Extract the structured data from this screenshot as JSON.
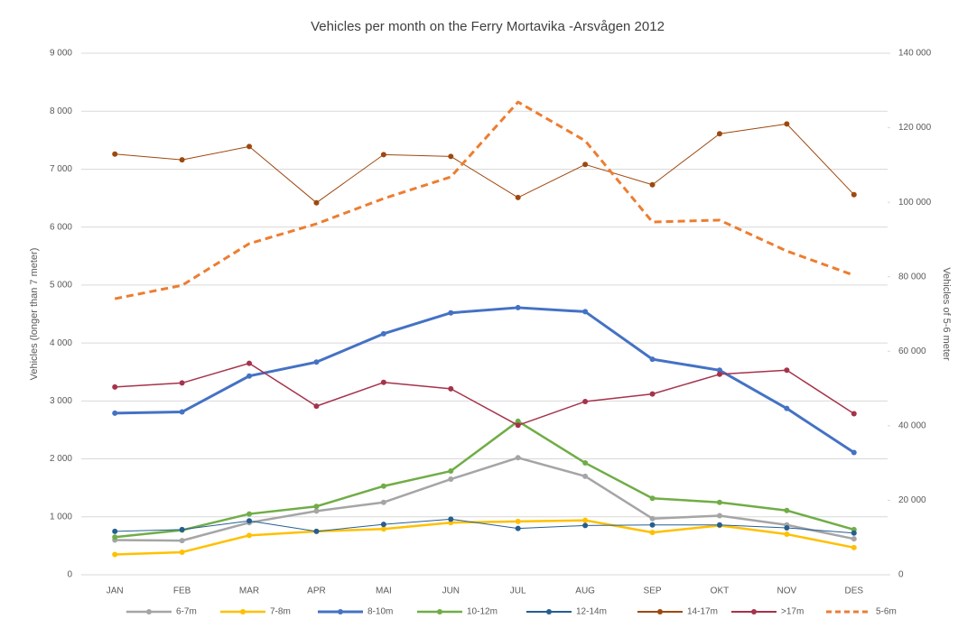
{
  "chart_data": {
    "type": "line",
    "title": "Vehicles per month on the Ferry Mortavika -Arsvågen 2012",
    "y_label": "Vehicles (longer than 7 meter)",
    "y2_label": "Vehicles of 5-6 meter",
    "categories": [
      "JAN",
      "FEB",
      "MAR",
      "APR",
      "MAI",
      "JUN",
      "JUL",
      "AUG",
      "SEP",
      "OKT",
      "NOV",
      "DES"
    ],
    "ylim": [
      0,
      9000
    ],
    "yticks": [
      0,
      {
        "value": 1000,
        "label": "1 000"
      },
      {
        "value": 2000,
        "label": "2 000"
      },
      {
        "value": 3000,
        "label": "3 000"
      },
      {
        "value": 4000,
        "label": "4 000"
      },
      {
        "value": 5000,
        "label": "5 000"
      },
      {
        "value": 6000,
        "label": "6 000"
      },
      {
        "value": 7000,
        "label": "7 000"
      },
      {
        "value": 8000,
        "label": "8 000"
      },
      {
        "value": 9000,
        "label": "9 000"
      }
    ],
    "y2lim": [
      0,
      140000
    ],
    "y2ticks": [
      0,
      {
        "value": 20000,
        "label": "20 000"
      },
      {
        "value": 40000,
        "label": "40 000"
      },
      {
        "value": 60000,
        "label": "60 000"
      },
      {
        "value": 80000,
        "label": "80 000"
      },
      {
        "value": 100000,
        "label": "100 000"
      },
      {
        "value": 120000,
        "label": "120 000"
      },
      {
        "value": 140000,
        "label": "140 000"
      }
    ],
    "grid": true,
    "legend": "bottom",
    "series": [
      {
        "name": "6-7m",
        "color": "#a5a5a5",
        "values": [
          600,
          590,
          900,
          1100,
          1250,
          1650,
          2020,
          1700,
          970,
          1020,
          860,
          620
        ]
      },
      {
        "name": "7-8m",
        "color": "#ffc000",
        "values": [
          350,
          390,
          680,
          750,
          790,
          900,
          920,
          940,
          730,
          850,
          700,
          470
        ]
      },
      {
        "name": "8-10m",
        "color": "#4472c4",
        "values": [
          2790,
          2810,
          3430,
          3670,
          4160,
          4520,
          4610,
          4540,
          3720,
          3530,
          2870,
          2110
        ]
      },
      {
        "name": "10-12m",
        "color": "#70ad47",
        "values": [
          650,
          770,
          1050,
          1180,
          1530,
          1790,
          2650,
          1930,
          1320,
          1250,
          1110,
          780
        ]
      },
      {
        "name": "12-14m",
        "color": "#255e91",
        "values": [
          750,
          780,
          930,
          750,
          870,
          960,
          800,
          850,
          860,
          860,
          810,
          720
        ]
      },
      {
        "name": "14-17m",
        "color": "#9e480e",
        "values": [
          7260,
          7160,
          7390,
          6420,
          7250,
          7220,
          6510,
          7080,
          6730,
          7610,
          7780,
          6560
        ]
      },
      {
        "name": ">17m",
        "color": "#a5334b",
        "values": [
          3240,
          3310,
          3650,
          2910,
          3320,
          3210,
          2580,
          2990,
          3120,
          3460,
          3530,
          2780
        ]
      },
      {
        "name": "5-6m",
        "color": "#ed7d31",
        "axis": "y2",
        "dash": true,
        "values": [
          74100,
          77700,
          88900,
          94200,
          101000,
          106800,
          126900,
          116500,
          94700,
          95200,
          86900,
          80400
        ]
      }
    ]
  }
}
